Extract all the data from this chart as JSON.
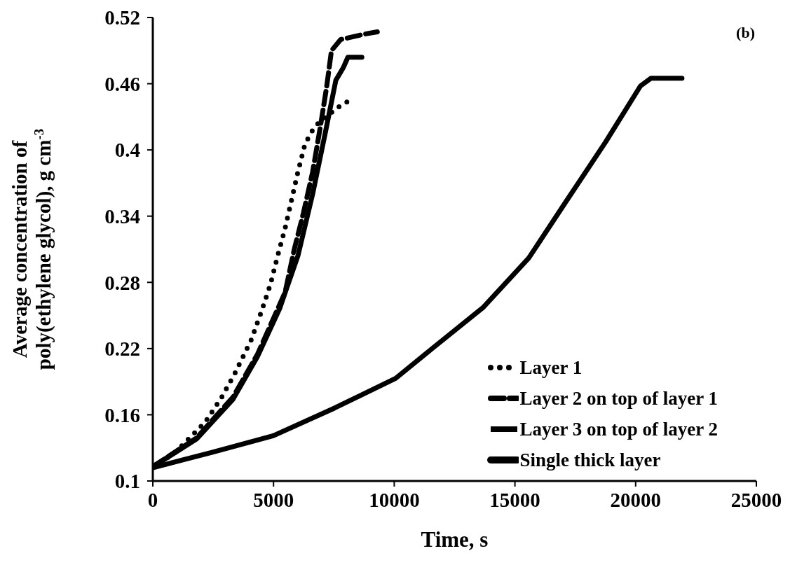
{
  "chart_data": {
    "type": "line",
    "xlabel": "Time, s",
    "ylabel": "Average concentration of poly(ethylene glycol), g cm$^{-3}$",
    "annotations": [
      "(b)"
    ],
    "xlim": [
      0,
      25000
    ],
    "xticks": [
      0,
      5000,
      10000,
      15000,
      20000,
      25000
    ],
    "ylim": [
      0.1,
      0.52
    ],
    "yticks": [
      0.1,
      0.16,
      0.22,
      0.28,
      0.34,
      0.4,
      0.46,
      0.52
    ],
    "grid": false,
    "legend": "bottom right",
    "marker": "none",
    "series": [
      {
        "name": "Layer 1",
        "color": "#000000",
        "line_style": "dotted",
        "x": [
          0,
          930,
          2160,
          2830,
          3410,
          4080,
          4490,
          4870,
          5160,
          5480,
          5740,
          6010,
          6300,
          6560,
          6880,
          7700,
          8160
        ],
        "values": [
          0.112,
          0.126,
          0.153,
          0.175,
          0.198,
          0.228,
          0.253,
          0.278,
          0.303,
          0.329,
          0.354,
          0.38,
          0.405,
          0.416,
          0.425,
          0.439,
          0.445
        ]
      },
      {
        "name": "Layer 2 on top of layer 1",
        "color": "#000000",
        "line_style": "dashed",
        "x": [
          0,
          1810,
          3320,
          4340,
          5480,
          5860,
          6240,
          6620,
          6940,
          7200,
          7400,
          7780,
          8780,
          9300
        ],
        "values": [
          0.113,
          0.139,
          0.176,
          0.215,
          0.271,
          0.31,
          0.343,
          0.38,
          0.421,
          0.457,
          0.49,
          0.5,
          0.505,
          0.507
        ]
      },
      {
        "name": "Layer 3 on top of layer 2",
        "color": "#000000",
        "line_style": "solid",
        "x": [
          0,
          1810,
          3320,
          4340,
          5250,
          6010,
          6620,
          7140,
          7580,
          7900,
          8080,
          8660
        ],
        "values": [
          0.113,
          0.138,
          0.174,
          0.213,
          0.256,
          0.304,
          0.36,
          0.415,
          0.463,
          0.475,
          0.484,
          0.484
        ]
      },
      {
        "name": "Single thick layer",
        "color": "#000000",
        "line_style": "solid",
        "x": [
          0,
          2450,
          4990,
          7520,
          10060,
          11570,
          13670,
          15570,
          17080,
          18750,
          20200,
          20640,
          21920
        ],
        "values": [
          0.112,
          0.126,
          0.141,
          0.166,
          0.193,
          0.22,
          0.257,
          0.302,
          0.352,
          0.407,
          0.458,
          0.465,
          0.465
        ]
      }
    ]
  }
}
